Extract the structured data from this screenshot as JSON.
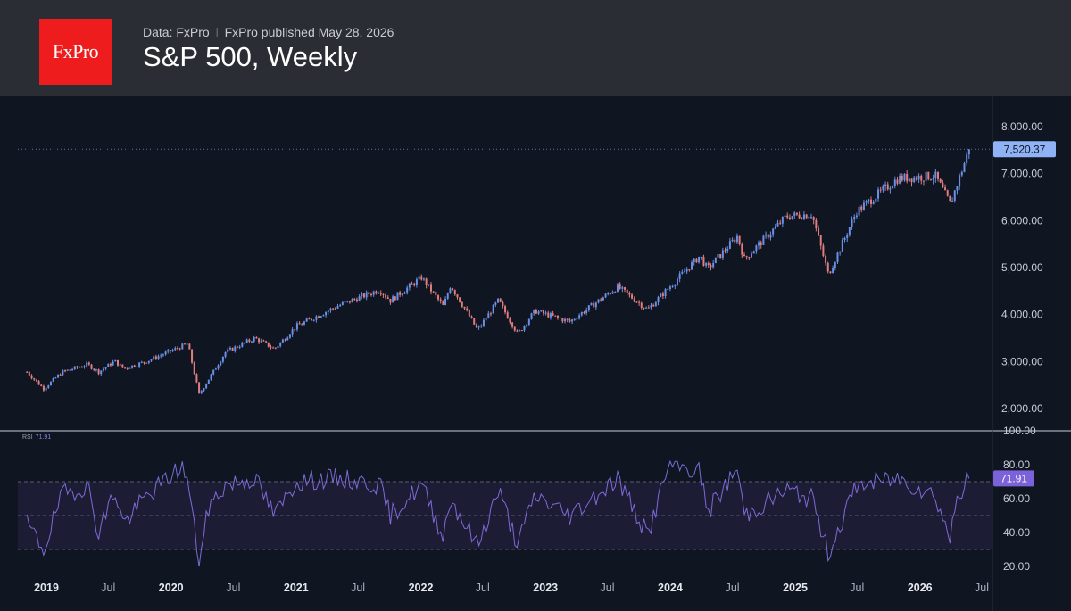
{
  "header": {
    "logo_text": "FxPro",
    "data_source": "Data: FxPro",
    "published": "FxPro published May 28, 2026",
    "title": "S&P 500, Weekly"
  },
  "colors": {
    "background": "#0f1521",
    "header_bg": "#2b2d35",
    "logo_bg": "#ee1c1c",
    "up_candle": "#6a8fe3",
    "down_candle": "#e07d7d",
    "price_badge": "#8fb3f5",
    "rsi_line": "#7d6bd6",
    "rsi_badge": "#7b62d9"
  },
  "chart_data": [
    {
      "type": "candlestick",
      "frequency": "weekly",
      "ylim": [
        1700,
        8300
      ],
      "y_ticks": [
        "2,000.00",
        "3,000.00",
        "4,000.00",
        "5,000.00",
        "6,000.00",
        "7,000.00",
        "8,000.00"
      ],
      "y_tick_values": [
        2000,
        3000,
        4000,
        5000,
        6000,
        7000,
        8000
      ],
      "last_price_label": "7,520.37",
      "last_price": 7520.37,
      "x_ticks": [
        "2019",
        "Jul",
        "2020",
        "Jul",
        "2021",
        "Jul",
        "2022",
        "Jul",
        "2023",
        "Jul",
        "2024",
        "Jul",
        "2025",
        "Jul",
        "2026",
        "Jul"
      ],
      "x_tick_dates": [
        "2019-01-01",
        "2019-07-01",
        "2020-01-01",
        "2020-07-01",
        "2021-01-01",
        "2021-07-01",
        "2022-01-01",
        "2022-07-01",
        "2023-01-01",
        "2023-07-01",
        "2024-01-01",
        "2024-07-01",
        "2025-01-01",
        "2025-07-01",
        "2026-01-01",
        "2026-07-01"
      ],
      "date_range": [
        "2018-11-05",
        "2026-05-25"
      ],
      "path_anchors": [
        [
          "2018-11-05",
          2780
        ],
        [
          "2018-12-24",
          2420
        ],
        [
          "2019-02-15",
          2775
        ],
        [
          "2019-05-01",
          2940
        ],
        [
          "2019-06-03",
          2780
        ],
        [
          "2019-07-20",
          3010
        ],
        [
          "2019-08-15",
          2850
        ],
        [
          "2019-10-15",
          2990
        ],
        [
          "2020-02-19",
          3380
        ],
        [
          "2020-03-23",
          2300
        ],
        [
          "2020-06-08",
          3200
        ],
        [
          "2020-09-02",
          3500
        ],
        [
          "2020-10-30",
          3270
        ],
        [
          "2021-01-01",
          3750
        ],
        [
          "2021-05-01",
          4180
        ],
        [
          "2021-09-02",
          4530
        ],
        [
          "2021-10-04",
          4300
        ],
        [
          "2022-01-03",
          4790
        ],
        [
          "2022-03-08",
          4170
        ],
        [
          "2022-03-29",
          4630
        ],
        [
          "2022-06-16",
          3670
        ],
        [
          "2022-08-16",
          4300
        ],
        [
          "2022-10-12",
          3590
        ],
        [
          "2022-12-01",
          4080
        ],
        [
          "2023-03-13",
          3850
        ],
        [
          "2023-07-31",
          4590
        ],
        [
          "2023-10-27",
          4110
        ],
        [
          "2024-03-28",
          5250
        ],
        [
          "2024-04-19",
          4970
        ],
        [
          "2024-07-16",
          5670
        ],
        [
          "2024-08-05",
          5180
        ],
        [
          "2024-12-06",
          6090
        ],
        [
          "2025-02-19",
          6140
        ],
        [
          "2025-04-08",
          4850
        ],
        [
          "2025-06-30",
          6200
        ],
        [
          "2025-10-29",
          6900
        ],
        [
          "2026-02-15",
          6950
        ],
        [
          "2026-03-31",
          6350
        ],
        [
          "2026-05-25",
          7520
        ]
      ]
    },
    {
      "type": "line",
      "name": "RSI",
      "value_label": "71.91",
      "last_value": 71.91,
      "ylim": [
        16,
        100
      ],
      "y_ticks": [
        "20.00",
        "40.00",
        "60.00",
        "80.00",
        "100.00"
      ],
      "y_tick_values": [
        20,
        40,
        60,
        80,
        100
      ],
      "levels": [
        30,
        50,
        70
      ],
      "path_anchors": [
        [
          "2018-11-05",
          45
        ],
        [
          "2018-12-24",
          30
        ],
        [
          "2019-02-15",
          62
        ],
        [
          "2019-05-01",
          68
        ],
        [
          "2019-06-03",
          40
        ],
        [
          "2019-07-20",
          65
        ],
        [
          "2019-08-15",
          45
        ],
        [
          "2019-10-15",
          60
        ],
        [
          "2020-01-15",
          76
        ],
        [
          "2020-02-05",
          80
        ],
        [
          "2020-02-19",
          70
        ],
        [
          "2020-03-23",
          22
        ],
        [
          "2020-04-20",
          55
        ],
        [
          "2020-06-08",
          68
        ],
        [
          "2020-09-02",
          72
        ],
        [
          "2020-10-30",
          50
        ],
        [
          "2021-01-01",
          70
        ],
        [
          "2021-05-01",
          72
        ],
        [
          "2021-09-02",
          68
        ],
        [
          "2021-10-04",
          50
        ],
        [
          "2022-01-03",
          68
        ],
        [
          "2022-03-08",
          38
        ],
        [
          "2022-03-29",
          60
        ],
        [
          "2022-06-16",
          32
        ],
        [
          "2022-08-16",
          65
        ],
        [
          "2022-10-12",
          33
        ],
        [
          "2022-12-01",
          62
        ],
        [
          "2023-03-13",
          50
        ],
        [
          "2023-07-31",
          72
        ],
        [
          "2023-10-27",
          38
        ],
        [
          "2023-12-28",
          80
        ],
        [
          "2024-03-28",
          76
        ],
        [
          "2024-04-19",
          52
        ],
        [
          "2024-07-16",
          78
        ],
        [
          "2024-08-05",
          50
        ],
        [
          "2024-12-06",
          65
        ],
        [
          "2025-02-19",
          60
        ],
        [
          "2025-04-08",
          28
        ],
        [
          "2025-06-30",
          68
        ],
        [
          "2025-10-29",
          72
        ],
        [
          "2026-02-15",
          62
        ],
        [
          "2026-03-31",
          36
        ],
        [
          "2026-04-20",
          62
        ],
        [
          "2026-05-25",
          71.91
        ]
      ]
    }
  ]
}
